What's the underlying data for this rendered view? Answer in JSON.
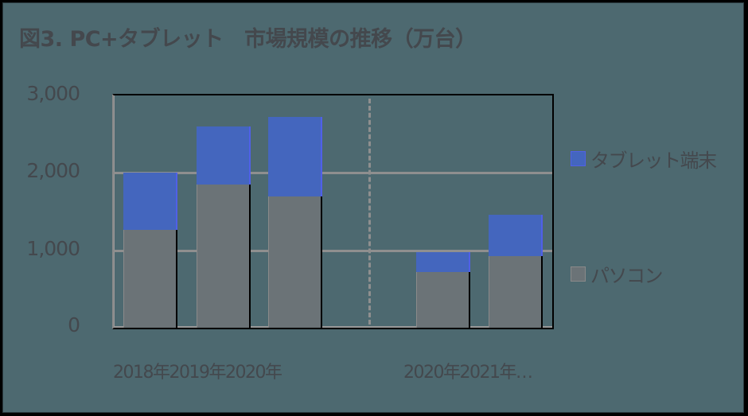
{
  "title": "図3. PC+タブレット　市場規模の推移（万台）",
  "y_axis": {
    "ticks": [
      "3,000",
      "2,000",
      "1,000",
      "0"
    ]
  },
  "x_axis": {
    "group1_label": "2018年2019年2020年",
    "group2_label": "2020年2021年…"
  },
  "legend": [
    {
      "label": "タブレット端末",
      "color": "#4466be"
    },
    {
      "label": "パソコン",
      "color": "#6b7377"
    }
  ],
  "chart_data": {
    "type": "bar",
    "stacked": true,
    "title": "図3. PC+タブレット　市場規模の推移（万台）",
    "xlabel": "",
    "ylabel": "万台",
    "ylim": [
      0,
      3000
    ],
    "yticks": [
      0,
      1000,
      2000,
      3000
    ],
    "grid": true,
    "legend_position": "right",
    "categories": [
      "2018年",
      "2019年",
      "2020年",
      "2020年",
      "2021年…"
    ],
    "series": [
      {
        "name": "パソコン",
        "color": "#6b7377",
        "values": [
          1260,
          1850,
          1700,
          720,
          925
        ]
      },
      {
        "name": "タブレット端末",
        "color": "#4466be",
        "values": [
          740,
          750,
          1020,
          255,
          535
        ]
      }
    ]
  }
}
